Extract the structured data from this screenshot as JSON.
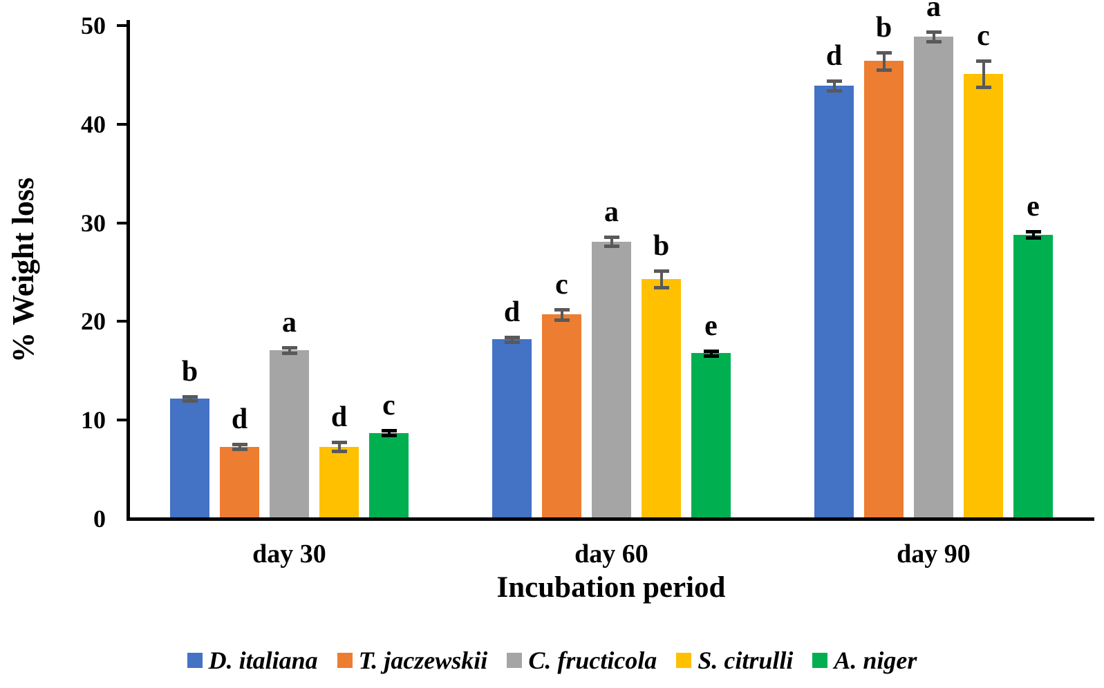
{
  "chart_data": {
    "type": "bar",
    "title": "",
    "xlabel": "Incubation period",
    "ylabel": "% Weight loss",
    "ylim": [
      0,
      50
    ],
    "yticks": [
      0,
      10,
      20,
      30,
      40,
      50
    ],
    "grid": false,
    "legend_position": "bottom",
    "categories": [
      "day 30",
      "day 60",
      "day 90"
    ],
    "series": [
      {
        "name": "D. italiana",
        "color": "#4472C4",
        "error_color": "#595959",
        "values": [
          12.2,
          18.2,
          43.9
        ],
        "errors": [
          0.2,
          0.25,
          0.5
        ],
        "letters": [
          "b",
          "d",
          "d"
        ]
      },
      {
        "name": "T. jaczewskii",
        "color": "#ED7D31",
        "error_color": "#595959",
        "values": [
          7.3,
          20.7,
          46.4
        ],
        "errors": [
          0.25,
          0.5,
          0.9
        ],
        "letters": [
          "d",
          "c",
          "b"
        ]
      },
      {
        "name": "C. fructicola",
        "color": "#A5A5A5",
        "error_color": "#595959",
        "values": [
          17.1,
          28.1,
          48.9
        ],
        "errors": [
          0.3,
          0.45,
          0.5
        ],
        "letters": [
          "a",
          "a",
          "a"
        ]
      },
      {
        "name": "S. citrulli",
        "color": "#FFC000",
        "error_color": "#595959",
        "values": [
          7.3,
          24.3,
          45.1
        ],
        "errors": [
          0.45,
          0.85,
          1.35
        ],
        "letters": [
          "d",
          "b",
          "c"
        ]
      },
      {
        "name": "A. niger",
        "color": "#00B050",
        "error_color": "#000000",
        "values": [
          8.7,
          16.8,
          28.8
        ],
        "errors": [
          0.25,
          0.25,
          0.3
        ],
        "letters": [
          "c",
          "e",
          "e"
        ]
      }
    ]
  }
}
